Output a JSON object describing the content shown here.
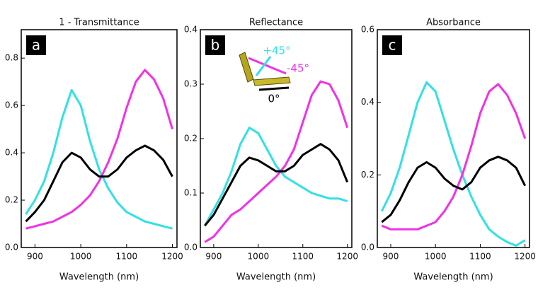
{
  "chart_data": [
    {
      "type": "line",
      "title": "1 - Transmittance",
      "panel_label": "a",
      "x_label": "Wavelength (nm)",
      "x": [
        880,
        900,
        920,
        940,
        960,
        980,
        1000,
        1020,
        1040,
        1060,
        1080,
        1100,
        1120,
        1140,
        1160,
        1180,
        1200
      ],
      "xlim": [
        870,
        1210
      ],
      "xticks": [
        900,
        1000,
        1100,
        1200
      ],
      "ylim": [
        0,
        0.92
      ],
      "yticks": [
        {
          "value": 0,
          "label": "0.0"
        },
        0.2,
        0.4,
        0.6,
        0.8
      ],
      "series": [
        {
          "color": "#33e0e6",
          "values": [
            0.14,
            0.2,
            0.28,
            0.4,
            0.55,
            0.665,
            0.6,
            0.45,
            0.33,
            0.25,
            0.19,
            0.15,
            0.13,
            0.11,
            0.1,
            0.09,
            0.08
          ]
        },
        {
          "color": "#f032e6",
          "values": [
            0.08,
            0.09,
            0.1,
            0.11,
            0.13,
            0.15,
            0.18,
            0.22,
            0.28,
            0.36,
            0.46,
            0.59,
            0.7,
            0.75,
            0.71,
            0.63,
            0.5
          ]
        },
        {
          "color": "#000000",
          "values": [
            0.11,
            0.15,
            0.2,
            0.28,
            0.36,
            0.4,
            0.38,
            0.33,
            0.3,
            0.3,
            0.33,
            0.38,
            0.41,
            0.43,
            0.41,
            0.37,
            0.3
          ]
        }
      ]
    },
    {
      "type": "line",
      "title": "Reflectance",
      "panel_label": "b",
      "x_label": "Wavelength (nm)",
      "x": [
        880,
        900,
        920,
        940,
        960,
        980,
        1000,
        1020,
        1040,
        1060,
        1080,
        1100,
        1120,
        1140,
        1160,
        1180,
        1200
      ],
      "xlim": [
        870,
        1210
      ],
      "xticks": [
        900,
        1000,
        1100,
        1200
      ],
      "ylim": [
        0,
        0.4
      ],
      "yticks": [
        {
          "value": 0,
          "label": "0.0"
        },
        0.1,
        0.2,
        0.3,
        0.4
      ],
      "series": [
        {
          "name": "+45°",
          "color": "#33e0e6",
          "values": [
            0.04,
            0.07,
            0.1,
            0.14,
            0.19,
            0.22,
            0.21,
            0.18,
            0.15,
            0.13,
            0.12,
            0.11,
            0.1,
            0.095,
            0.09,
            0.09,
            0.085
          ]
        },
        {
          "name": "-45°",
          "color": "#f032e6",
          "values": [
            0.01,
            0.02,
            0.04,
            0.06,
            0.07,
            0.085,
            0.1,
            0.115,
            0.13,
            0.15,
            0.18,
            0.23,
            0.28,
            0.305,
            0.3,
            0.27,
            0.22
          ]
        },
        {
          "name": "0°",
          "color": "#000000",
          "values": [
            0.04,
            0.06,
            0.09,
            0.12,
            0.15,
            0.165,
            0.16,
            0.15,
            0.14,
            0.14,
            0.15,
            0.17,
            0.18,
            0.19,
            0.18,
            0.16,
            0.12
          ]
        }
      ]
    },
    {
      "type": "line",
      "title": "Absorbance",
      "panel_label": "c",
      "x_label": "Wavelength (nm)",
      "x": [
        880,
        900,
        920,
        940,
        960,
        980,
        1000,
        1020,
        1040,
        1060,
        1080,
        1100,
        1120,
        1140,
        1160,
        1180,
        1200
      ],
      "xlim": [
        870,
        1210
      ],
      "xticks": [
        900,
        1000,
        1100,
        1200
      ],
      "ylim": [
        0,
        0.6
      ],
      "yticks": [
        {
          "value": 0,
          "label": "0.0"
        },
        0.2,
        0.4,
        0.6
      ],
      "series": [
        {
          "color": "#33e0e6",
          "values": [
            0.1,
            0.15,
            0.22,
            0.31,
            0.4,
            0.455,
            0.43,
            0.35,
            0.27,
            0.2,
            0.14,
            0.09,
            0.05,
            0.03,
            0.015,
            0.005,
            0.02
          ]
        },
        {
          "color": "#f032e6",
          "values": [
            0.06,
            0.05,
            0.05,
            0.05,
            0.05,
            0.06,
            0.07,
            0.1,
            0.14,
            0.2,
            0.28,
            0.37,
            0.43,
            0.45,
            0.42,
            0.37,
            0.3
          ]
        },
        {
          "color": "#000000",
          "values": [
            0.07,
            0.09,
            0.13,
            0.18,
            0.22,
            0.235,
            0.22,
            0.19,
            0.17,
            0.16,
            0.18,
            0.22,
            0.24,
            0.25,
            0.24,
            0.22,
            0.17
          ]
        }
      ]
    }
  ]
}
